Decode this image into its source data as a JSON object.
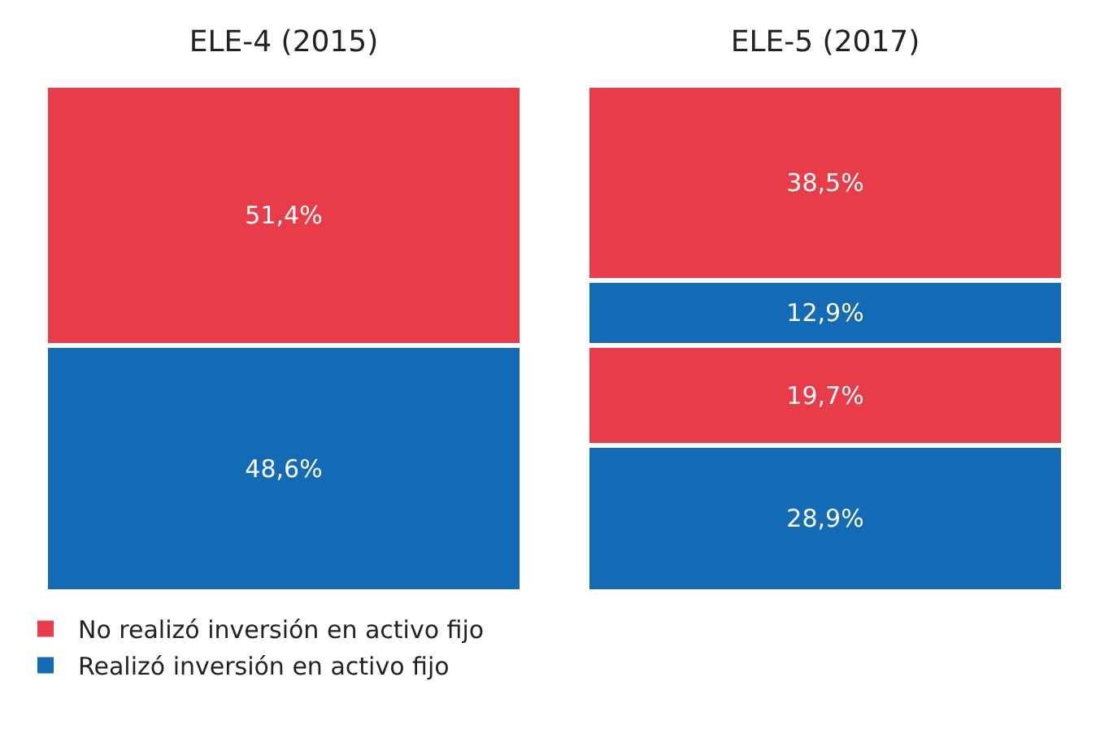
{
  "chart_data": {
    "type": "bar",
    "stacked": true,
    "categories": [
      "ELE-4 (2015)",
      "ELE-5 (2017)"
    ],
    "series": [
      {
        "name": "Realizó inversión en activo fijo",
        "color": "#136bb5",
        "values": [
          48.6,
          28.9
        ],
        "value_labels": [
          "48,6%",
          "28,9%"
        ]
      },
      {
        "name": "No realizó inversión en activo fijo",
        "color": "#e83c48",
        "values": [
          51.4,
          19.7
        ],
        "value_labels": [
          "51,4%",
          "19,7%"
        ]
      },
      {
        "color": "#136bb5",
        "values": [
          null,
          12.9
        ],
        "value_labels": [
          null,
          "12,9%"
        ]
      },
      {
        "color": "#e83c48",
        "values": [
          null,
          38.5
        ],
        "value_labels": [
          null,
          "38,5%"
        ]
      }
    ],
    "legend": "bottom left",
    "tick_labels": "x"
  }
}
